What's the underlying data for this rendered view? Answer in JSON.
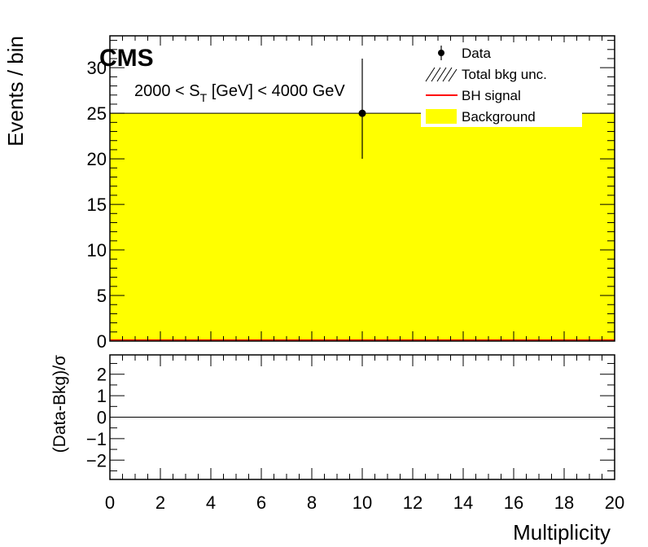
{
  "chart_data": [
    {
      "type": "bar",
      "panel": "main",
      "experiment_label": "CMS",
      "annotation": {
        "prefix": "2000 < S",
        "subscript": "T",
        "suffix": " [GeV] < 4000 GeV"
      },
      "ylabel": "Events / bin",
      "xlim": [
        0,
        20
      ],
      "ylim": [
        0,
        33.5
      ],
      "y_ticks": [
        0,
        5,
        10,
        15,
        20,
        25,
        30
      ],
      "legend_position": "top-right",
      "legend": [
        {
          "label": "Data",
          "style": "marker"
        },
        {
          "label": "Total bkg unc.",
          "style": "hatch"
        },
        {
          "label": "BH signal",
          "style": "line",
          "color": "#ff0000"
        },
        {
          "label": "Background",
          "style": "fill",
          "color": "#ffff00"
        }
      ],
      "series": [
        {
          "name": "Background",
          "bins": [
            {
              "x_low": 0,
              "x_high": 20,
              "value": 25
            }
          ],
          "color": "#ffff00"
        },
        {
          "name": "BH signal",
          "bins": [
            {
              "x_low": 0,
              "x_high": 20,
              "value": 0
            }
          ],
          "color": "#ff0000"
        },
        {
          "name": "Data",
          "points": [
            {
              "x": 10,
              "y": 25,
              "err_low": 5,
              "err_high": 6
            }
          ],
          "color": "#000000"
        }
      ]
    },
    {
      "type": "line",
      "panel": "ratio",
      "ylabel_prefix": "(Data-Bkg)/",
      "ylabel_symbol": "σ",
      "xlabel": "Multiplicity",
      "xlim": [
        0,
        20
      ],
      "ylim": [
        -2.9,
        2.9
      ],
      "x_ticks": [
        0,
        2,
        4,
        6,
        8,
        10,
        12,
        14,
        16,
        18,
        20
      ],
      "y_ticks": [
        {
          "value": 2,
          "label": "2"
        },
        {
          "value": 1,
          "label": "1"
        },
        {
          "value": 0,
          "label": "0"
        },
        {
          "value": -1,
          "label": "−1"
        },
        {
          "value": -2,
          "label": "−2"
        }
      ],
      "reference_line": 0
    }
  ]
}
